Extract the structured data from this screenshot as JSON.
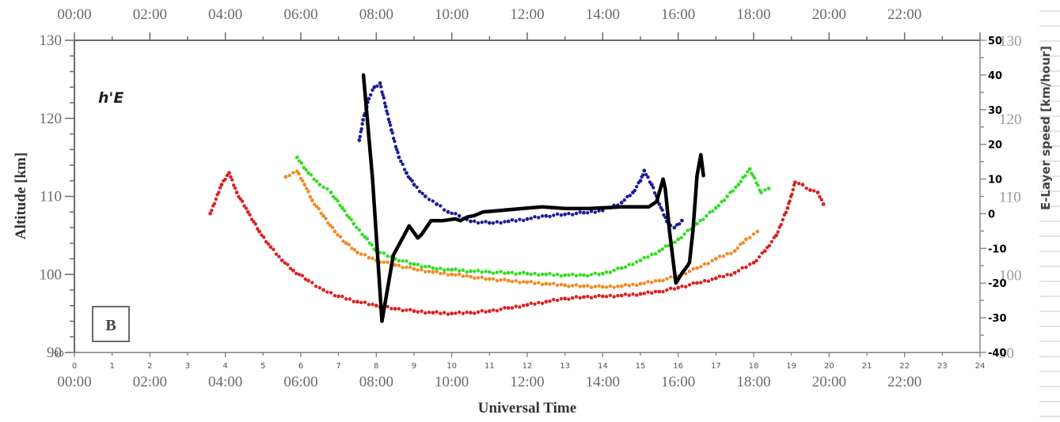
{
  "chart_data": {
    "type": "scatter",
    "title": "",
    "annotation": "h'E",
    "panel_label": "B",
    "xlabel": "Universal Time",
    "ylabel": "Altitude [km]",
    "y2label": "E-Layer speed [km/hour]",
    "xlim": [
      0,
      24
    ],
    "ylim": [
      90,
      130
    ],
    "y2lim": [
      -40,
      50
    ],
    "grid": false,
    "legend": null,
    "x_time_ticks": [
      "00:00",
      "02:00",
      "04:00",
      "06:00",
      "08:00",
      "10:00",
      "12:00",
      "14:00",
      "16:00",
      "18:00",
      "20:00",
      "22:00"
    ],
    "x_hour_ticks": [
      "0",
      "1",
      "2",
      "3",
      "4",
      "5",
      "6",
      "7",
      "8",
      "9",
      "10",
      "11",
      "12",
      "13",
      "14",
      "15",
      "16",
      "17",
      "18",
      "19",
      "20",
      "21",
      "22",
      "23",
      "24"
    ],
    "y_ticks": [
      "90",
      "100",
      "110",
      "120",
      "130"
    ],
    "y2_ticks": [
      "-40",
      "-30",
      "-20",
      "-10",
      "0",
      "10",
      "20",
      "30",
      "40",
      "50"
    ],
    "y_extra_small_label": "90",
    "right_ghost_ticks": [
      "130",
      "120",
      "110",
      "100",
      "90"
    ],
    "series": [
      {
        "name": "red",
        "color": "#dd2020",
        "marker": "dot",
        "axis": "left",
        "x": [
          3.6,
          3.9,
          4.1,
          4.3,
          4.6,
          4.9,
          5.2,
          5.5,
          5.8,
          6.2,
          6.6,
          7.0,
          7.5,
          8.0,
          8.5,
          9.0,
          9.5,
          10.0,
          10.5,
          11.0,
          11.5,
          12.0,
          12.5,
          13.0,
          13.5,
          14.0,
          14.5,
          15.0,
          15.5,
          16.0,
          16.5,
          17.0,
          17.5,
          18.0,
          18.3,
          18.6,
          18.9,
          19.1,
          19.3,
          19.5,
          19.7,
          19.85
        ],
        "values": [
          107.8,
          111.5,
          113.0,
          110.5,
          108.0,
          105.5,
          103.5,
          101.8,
          100.5,
          99.2,
          98.0,
          97.2,
          96.5,
          96.0,
          95.6,
          95.3,
          95.1,
          95.0,
          95.1,
          95.3,
          95.7,
          96.1,
          96.5,
          96.9,
          97.1,
          97.2,
          97.3,
          97.5,
          97.8,
          98.3,
          98.9,
          99.5,
          100.2,
          101.5,
          103.0,
          105.0,
          108.5,
          111.8,
          111.5,
          110.8,
          110.5,
          109.0
        ]
      },
      {
        "name": "orange",
        "color": "#f08a24",
        "marker": "dot",
        "axis": "left",
        "x": [
          5.6,
          5.9,
          6.1,
          6.3,
          6.6,
          6.9,
          7.2,
          7.5,
          8.0,
          8.5,
          9.0,
          9.5,
          10.0,
          10.5,
          11.0,
          11.5,
          12.0,
          12.5,
          13.0,
          13.5,
          14.0,
          14.5,
          15.0,
          15.5,
          16.0,
          16.5,
          17.0,
          17.5,
          17.8,
          18.1
        ],
        "values": [
          112.5,
          113.2,
          111.5,
          109.5,
          107.5,
          105.5,
          104.0,
          102.8,
          101.8,
          101.2,
          100.7,
          100.3,
          100.0,
          99.7,
          99.4,
          99.2,
          99.0,
          98.8,
          98.6,
          98.5,
          98.4,
          98.5,
          98.8,
          99.2,
          99.8,
          100.8,
          102.0,
          103.0,
          104.5,
          105.5
        ]
      },
      {
        "name": "green",
        "color": "#33dd22",
        "marker": "dot",
        "axis": "left",
        "x": [
          5.9,
          6.2,
          6.5,
          6.8,
          7.1,
          7.4,
          7.7,
          8.0,
          8.5,
          9.0,
          9.5,
          10.0,
          10.5,
          11.0,
          11.5,
          12.0,
          12.5,
          13.0,
          13.5,
          14.0,
          14.5,
          15.0,
          15.5,
          16.0,
          16.5,
          17.0,
          17.3,
          17.6,
          17.9,
          18.2,
          18.4
        ],
        "values": [
          115.0,
          113.0,
          111.5,
          110.5,
          108.5,
          106.5,
          104.8,
          103.0,
          102.0,
          101.3,
          100.8,
          100.6,
          100.4,
          100.3,
          100.2,
          100.1,
          100.0,
          99.9,
          99.9,
          100.1,
          100.8,
          101.8,
          103.0,
          104.5,
          106.5,
          108.5,
          110.0,
          111.5,
          113.5,
          110.5,
          111.0
        ]
      },
      {
        "name": "blue",
        "color": "#1c1c99",
        "marker": "dot",
        "axis": "left",
        "x": [
          7.55,
          7.65,
          7.8,
          7.95,
          8.1,
          8.25,
          8.4,
          8.6,
          8.8,
          9.0,
          9.3,
          9.6,
          9.9,
          10.2,
          10.5,
          11.0,
          11.5,
          12.0,
          12.5,
          13.0,
          13.5,
          14.0,
          14.5,
          14.8,
          15.0,
          15.1,
          15.3,
          15.5,
          15.7,
          15.9,
          16.1
        ],
        "values": [
          117.2,
          119.8,
          122.5,
          124.0,
          124.5,
          121.5,
          118.5,
          115.0,
          113.0,
          111.5,
          110.0,
          109.0,
          108.0,
          107.5,
          106.8,
          106.6,
          106.8,
          107.1,
          107.5,
          107.7,
          107.9,
          108.2,
          109.2,
          110.5,
          112.0,
          113.3,
          111.5,
          109.0,
          106.8,
          106.0,
          106.9
        ]
      },
      {
        "name": "E-Layer speed",
        "color": "#000000",
        "marker": "line",
        "axis": "right",
        "x": [
          7.66,
          7.9,
          8.15,
          8.45,
          8.87,
          9.1,
          9.2,
          9.45,
          9.77,
          10.09,
          10.23,
          10.4,
          10.61,
          10.82,
          11.34,
          11.87,
          12.39,
          13.02,
          13.65,
          14.49,
          15.22,
          15.43,
          15.6,
          15.66,
          15.77,
          15.94,
          16.11,
          16.25,
          16.3,
          16.39,
          16.5,
          16.6,
          16.67
        ],
        "values": [
          40,
          10,
          -31,
          -12,
          -3.5,
          -7,
          -6,
          -2,
          -2,
          -1.5,
          -2,
          -1,
          -0.5,
          0.5,
          1,
          1.5,
          2,
          1.5,
          1.5,
          2,
          2,
          3.5,
          10,
          7,
          -5,
          -20,
          -17,
          -15,
          -14,
          -5,
          11,
          17,
          11
        ]
      }
    ]
  }
}
